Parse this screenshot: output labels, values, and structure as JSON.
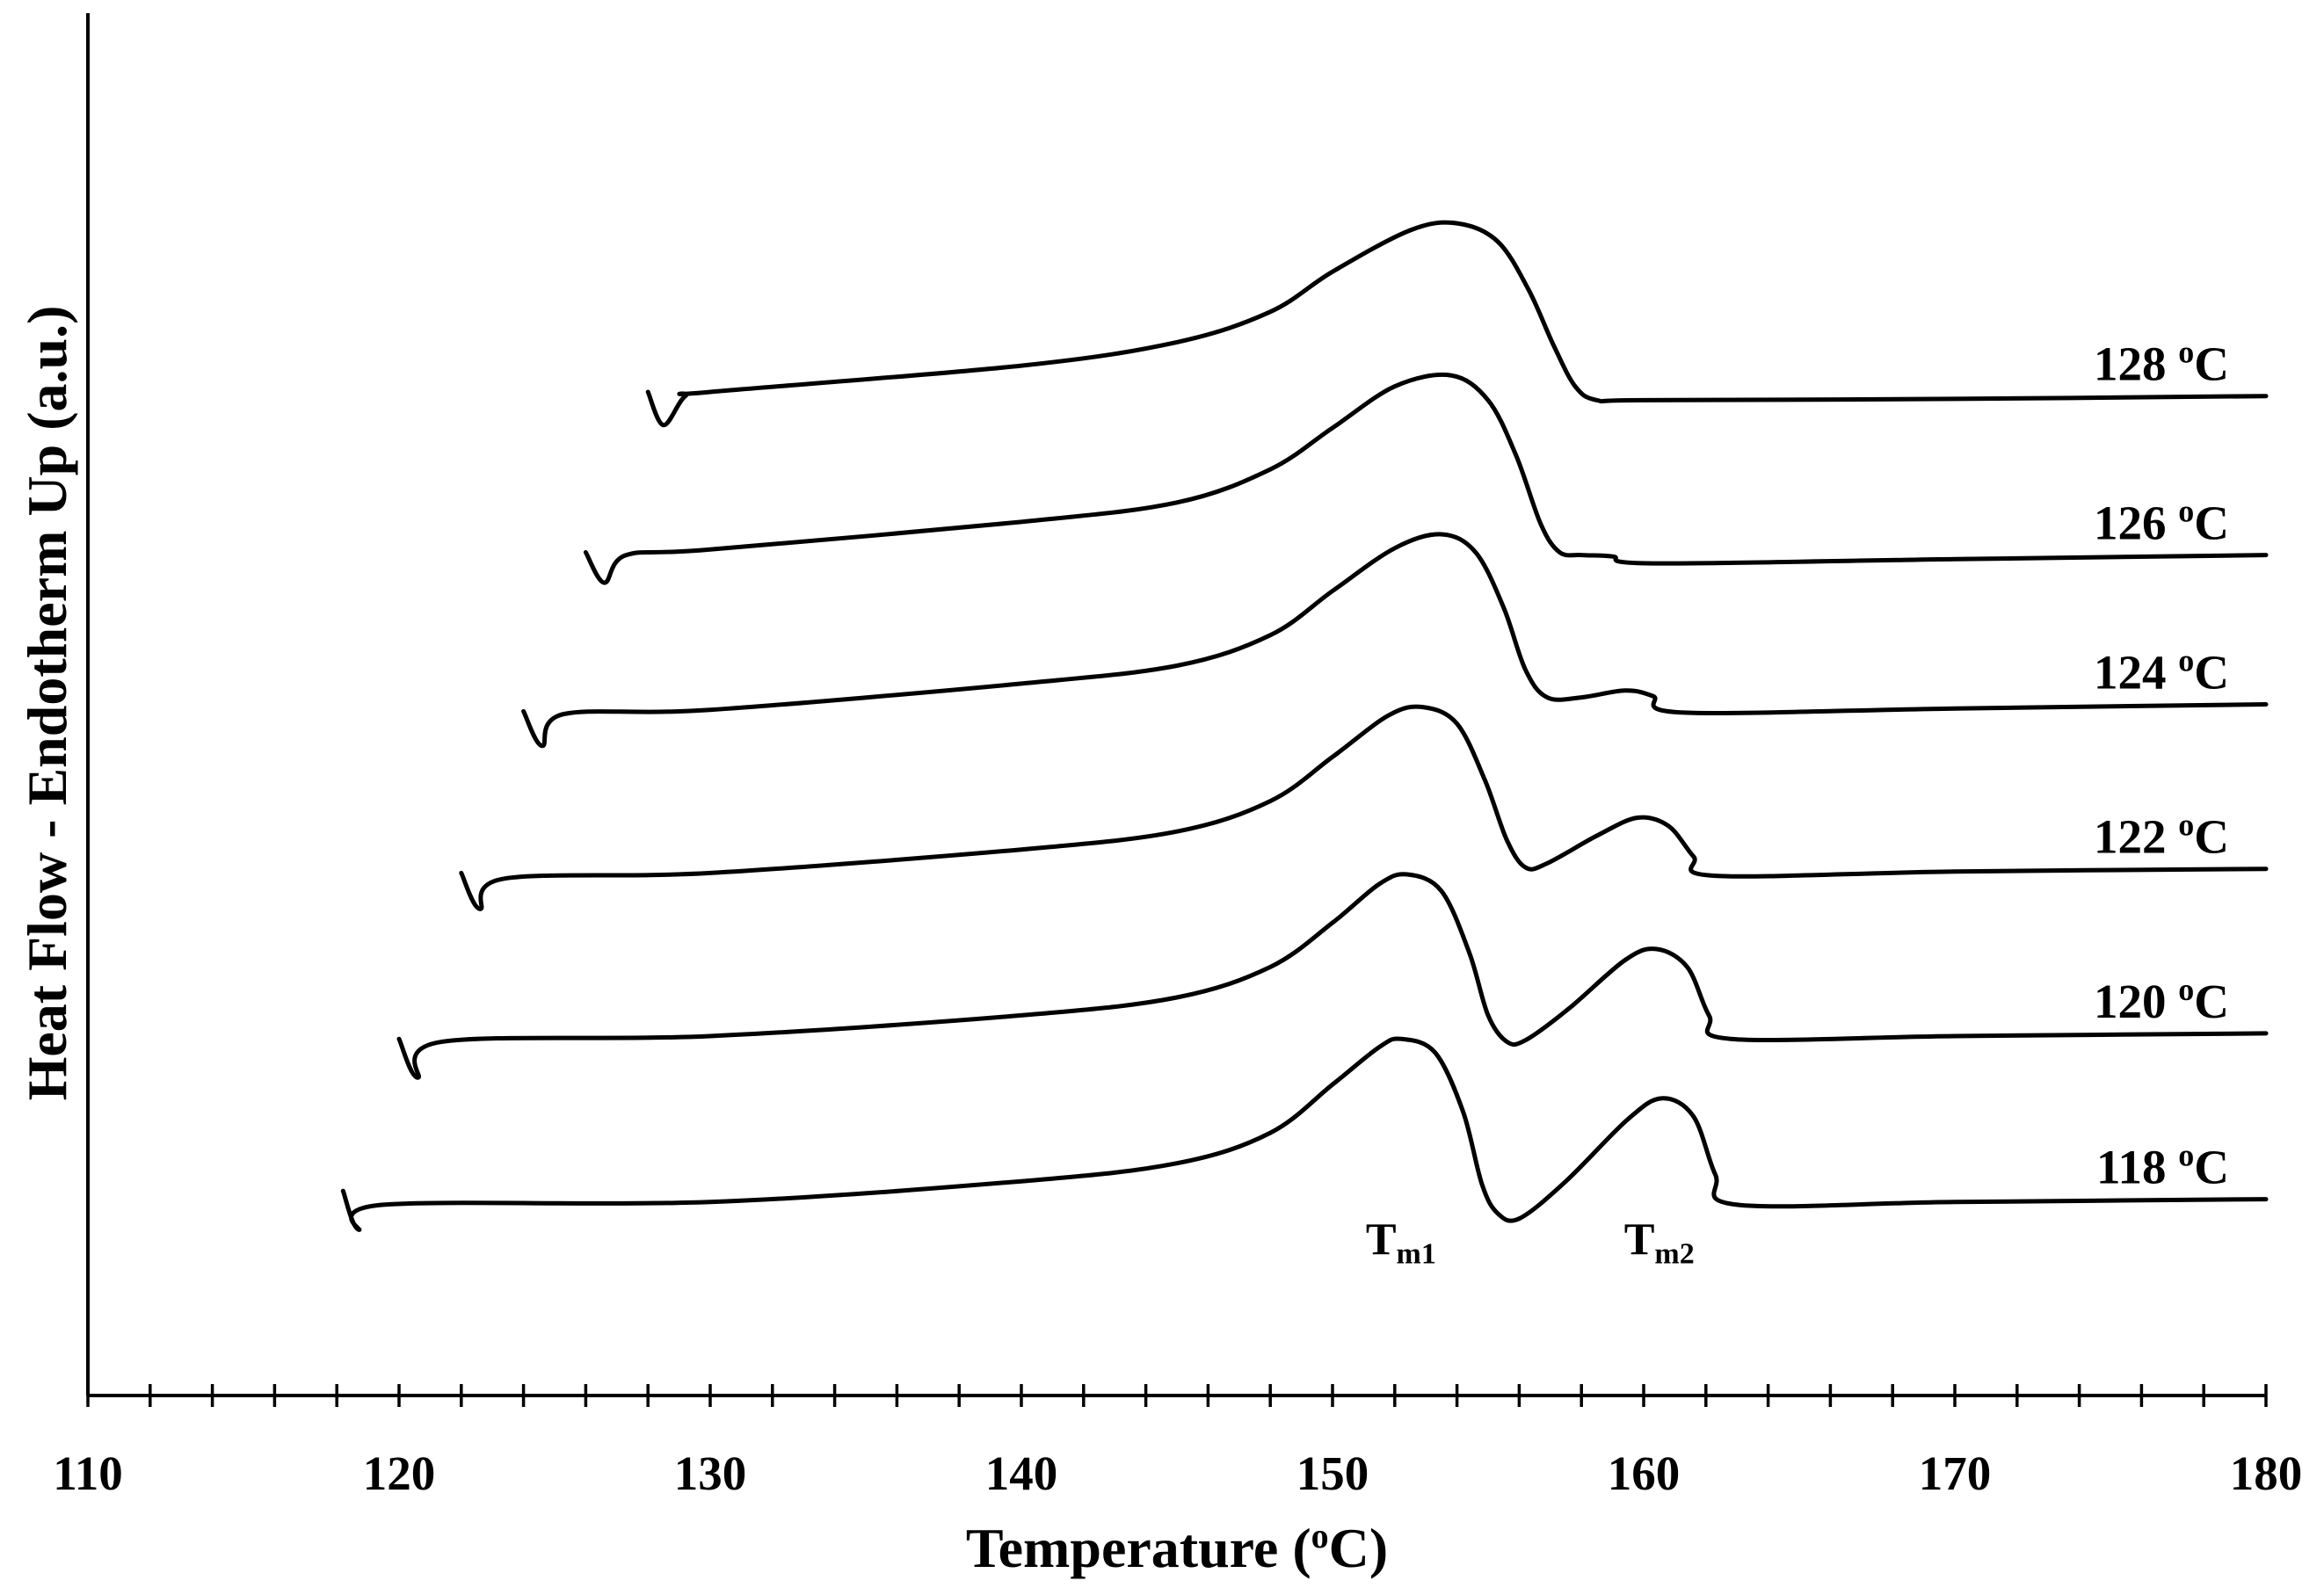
{
  "chart_data": {
    "type": "line",
    "title": "",
    "xlabel": "Temperature (",
    "xlabel_sup": "o",
    "xlabel_end": "C)",
    "ylabel": "Heat Flow - Endotherm Up (a.u.)",
    "xlim": [
      110,
      180
    ],
    "ylim": [
      0,
      100
    ],
    "x_major_ticks": [
      110,
      120,
      130,
      140,
      150,
      160,
      170,
      180
    ],
    "x_tick_labels": [
      "110",
      "120",
      "130",
      "140",
      "150",
      "160",
      "170",
      "180"
    ],
    "x_minor_step": 2,
    "grid": false,
    "legend": "none",
    "annotations": [
      {
        "main": "T",
        "sub": "m1",
        "x": 152.2,
        "y": 13.5
      },
      {
        "main": "T",
        "sub": "m2",
        "x": 160.5,
        "y": 13.5
      }
    ],
    "series": [
      {
        "name": "118",
        "label_num": "118 ",
        "label_sup": "o",
        "label_end": "C",
        "points": [
          [
            118.2,
            14.8
          ],
          [
            118.7,
            12.0
          ],
          [
            119.5,
            13.8
          ],
          [
            130,
            14.0
          ],
          [
            140,
            15.5
          ],
          [
            145,
            16.8
          ],
          [
            148,
            19.0
          ],
          [
            150,
            22.5
          ],
          [
            151.5,
            25.2
          ],
          [
            152.2,
            25.8
          ],
          [
            153.3,
            24.8
          ],
          [
            154.2,
            20.5
          ],
          [
            154.8,
            15.3
          ],
          [
            155.3,
            13.2
          ],
          [
            156.0,
            12.8
          ],
          [
            157.5,
            15.5
          ],
          [
            159.5,
            20.0
          ],
          [
            160.6,
            21.5
          ],
          [
            161.6,
            20.2
          ],
          [
            162.3,
            16.0
          ],
          [
            163.0,
            13.8
          ],
          [
            170,
            14.0
          ],
          [
            180,
            14.2
          ]
        ]
      },
      {
        "name": "120",
        "label_num": "120 ",
        "label_sup": "o",
        "label_end": "C",
        "points": [
          [
            120.0,
            25.8
          ],
          [
            120.6,
            23.0
          ],
          [
            121.4,
            25.6
          ],
          [
            130,
            26.0
          ],
          [
            140,
            27.5
          ],
          [
            145,
            28.8
          ],
          [
            148,
            31.0
          ],
          [
            150,
            34.2
          ],
          [
            151.5,
            37.0
          ],
          [
            152.4,
            37.7
          ],
          [
            153.5,
            36.5
          ],
          [
            154.4,
            32.0
          ],
          [
            155.0,
            27.5
          ],
          [
            155.6,
            25.6
          ],
          [
            156.2,
            25.7
          ],
          [
            157.6,
            28.0
          ],
          [
            159.4,
            31.5
          ],
          [
            160.4,
            32.3
          ],
          [
            161.4,
            31.0
          ],
          [
            162.1,
            27.5
          ],
          [
            162.8,
            25.8
          ],
          [
            170,
            26.0
          ],
          [
            180,
            26.2
          ]
        ]
      },
      {
        "name": "122",
        "label_num": "122 ",
        "label_sup": "o",
        "label_end": "C",
        "points": [
          [
            122.0,
            37.8
          ],
          [
            122.6,
            35.2
          ],
          [
            123.4,
            37.4
          ],
          [
            130,
            37.8
          ],
          [
            140,
            39.5
          ],
          [
            145,
            40.8
          ],
          [
            148,
            43.0
          ],
          [
            150,
            46.2
          ],
          [
            151.8,
            49.2
          ],
          [
            152.9,
            49.8
          ],
          [
            154.0,
            48.6
          ],
          [
            154.9,
            44.5
          ],
          [
            155.6,
            40.2
          ],
          [
            156.2,
            38.2
          ],
          [
            156.9,
            38.5
          ],
          [
            158.5,
            40.5
          ],
          [
            159.8,
            41.8
          ],
          [
            160.8,
            41.2
          ],
          [
            161.6,
            39.0
          ],
          [
            162.3,
            37.6
          ],
          [
            170,
            37.9
          ],
          [
            180,
            38.1
          ]
        ]
      },
      {
        "name": "124",
        "label_num": "124 ",
        "label_sup": "o",
        "label_end": "C",
        "points": [
          [
            124.0,
            49.5
          ],
          [
            124.6,
            47.0
          ],
          [
            125.3,
            49.3
          ],
          [
            130,
            49.6
          ],
          [
            140,
            51.5
          ],
          [
            145,
            52.8
          ],
          [
            148,
            55.0
          ],
          [
            150,
            58.2
          ],
          [
            152.0,
            61.3
          ],
          [
            153.5,
            62.3
          ],
          [
            154.6,
            61.0
          ],
          [
            155.5,
            57.0
          ],
          [
            156.2,
            52.5
          ],
          [
            156.9,
            50.5
          ],
          [
            158.0,
            50.5
          ],
          [
            159.4,
            51.0
          ],
          [
            160.3,
            50.6
          ],
          [
            161.3,
            49.4
          ],
          [
            170,
            49.7
          ],
          [
            180,
            50.0
          ]
        ]
      },
      {
        "name": "126",
        "label_num": "126 ",
        "label_sup": "o",
        "label_end": "C",
        "points": [
          [
            126.0,
            61.0
          ],
          [
            126.6,
            58.8
          ],
          [
            127.3,
            60.8
          ],
          [
            130,
            61.2
          ],
          [
            140,
            63.2
          ],
          [
            145,
            64.6
          ],
          [
            148,
            67.0
          ],
          [
            150,
            70.0
          ],
          [
            152.0,
            73.0
          ],
          [
            153.8,
            73.8
          ],
          [
            155.0,
            72.0
          ],
          [
            155.9,
            68.0
          ],
          [
            156.7,
            63.0
          ],
          [
            157.3,
            61.0
          ],
          [
            158.0,
            60.8
          ],
          [
            159.0,
            60.7
          ],
          [
            160.3,
            60.2
          ],
          [
            170,
            60.5
          ],
          [
            180,
            60.8
          ]
        ]
      },
      {
        "name": "128",
        "label_num": "128 ",
        "label_sup": "o",
        "label_end": "C",
        "points": [
          [
            128.0,
            72.6
          ],
          [
            128.5,
            70.2
          ],
          [
            129.2,
            72.3
          ],
          [
            130,
            72.6
          ],
          [
            140,
            74.5
          ],
          [
            145,
            76.2
          ],
          [
            148,
            78.4
          ],
          [
            150,
            81.3
          ],
          [
            152.5,
            84.3
          ],
          [
            154.0,
            84.8
          ],
          [
            155.3,
            83.5
          ],
          [
            156.3,
            80.0
          ],
          [
            157.1,
            76.0
          ],
          [
            157.8,
            73.0
          ],
          [
            158.5,
            72.0
          ],
          [
            160,
            72.0
          ],
          [
            170,
            72.1
          ],
          [
            180,
            72.3
          ]
        ]
      }
    ]
  }
}
